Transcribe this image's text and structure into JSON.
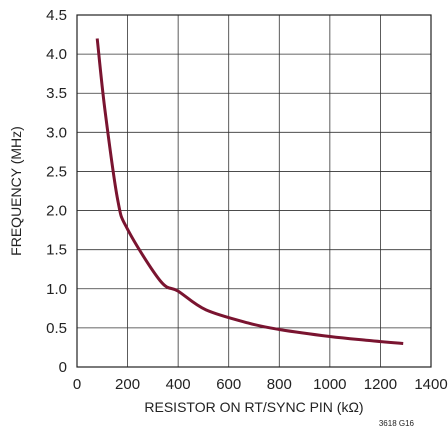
{
  "chart_data": {
    "type": "line",
    "title": "",
    "xlabel": "RESISTOR ON RT/SYNC PIN (kΩ)",
    "ylabel": "FREQUENCY (MHz)",
    "xlim": [
      0,
      1400
    ],
    "ylim": [
      0,
      4.5
    ],
    "x_ticks": [
      0,
      200,
      400,
      600,
      800,
      1000,
      1200,
      1400
    ],
    "x_tick_labels": [
      "0",
      "200",
      "400",
      "600",
      "800",
      "1000",
      "1200",
      "1400"
    ],
    "y_ticks": [
      0,
      0.5,
      1.0,
      1.5,
      2.0,
      2.5,
      3.0,
      3.5,
      4.0,
      4.5
    ],
    "y_tick_labels": [
      "0",
      "0.5",
      "1.0",
      "1.5",
      "2.0",
      "2.5",
      "3.0",
      "3.5",
      "4.0",
      "4.5"
    ],
    "grid": true,
    "legend": "none",
    "series": [
      {
        "color": "#7a1430",
        "x": [
          80,
          110,
          160,
          200,
          330,
          400,
          510,
          680,
          800,
          1000,
          1150,
          1290
        ],
        "y": [
          4.2,
          3.3,
          2.15,
          1.76,
          1.1,
          0.97,
          0.73,
          0.56,
          0.48,
          0.39,
          0.34,
          0.3
        ]
      }
    ],
    "annotations": [
      {
        "text": "3618 G16",
        "position": "bottom-right"
      }
    ]
  }
}
